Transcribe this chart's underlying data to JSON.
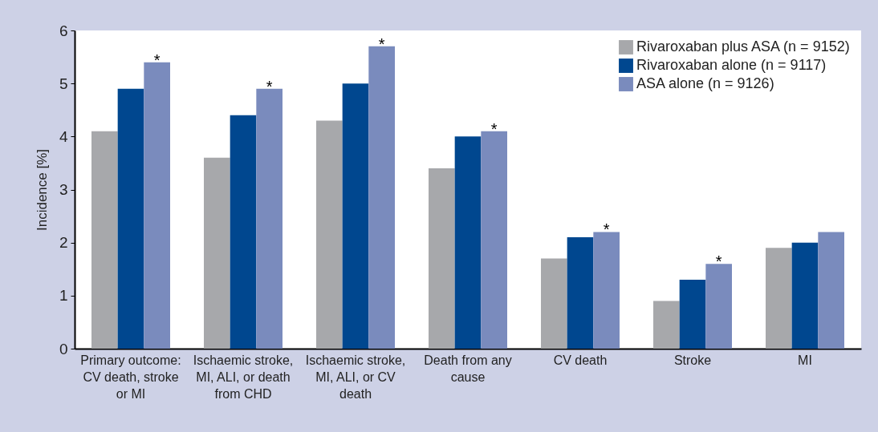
{
  "chart_data": {
    "type": "bar",
    "ylabel": "Incidence [%]",
    "categories": [
      "Primary outcome: CV death, stroke or MI",
      "Ischaemic stroke, MI, ALI, or death from CHD",
      "Ischaemic stroke, MI, ALI, or CV death",
      "Death from any cause",
      "CV death",
      "Stroke",
      "MI"
    ],
    "series": [
      {
        "name": "Rivaroxaban plus ASA (n = 9152)",
        "color": "#a7a8ab",
        "values": [
          4.1,
          3.6,
          4.3,
          3.4,
          1.7,
          0.9,
          1.9
        ]
      },
      {
        "name": "Rivaroxaban alone (n = 9117)",
        "color": "#00478f",
        "values": [
          4.9,
          4.4,
          5.0,
          4.0,
          2.1,
          1.3,
          2.0
        ]
      },
      {
        "name": "ASA alone (n = 9126)",
        "color": "#7a8bbd",
        "values": [
          5.4,
          4.9,
          5.7,
          4.1,
          2.2,
          1.6,
          2.2
        ],
        "value_labels": [
          "*",
          "*",
          "*",
          "*",
          "*",
          "*",
          null
        ]
      }
    ],
    "ylim": [
      0,
      6
    ],
    "yticks": [
      0,
      1,
      2,
      3,
      4,
      5,
      6
    ],
    "legend": "top right"
  }
}
